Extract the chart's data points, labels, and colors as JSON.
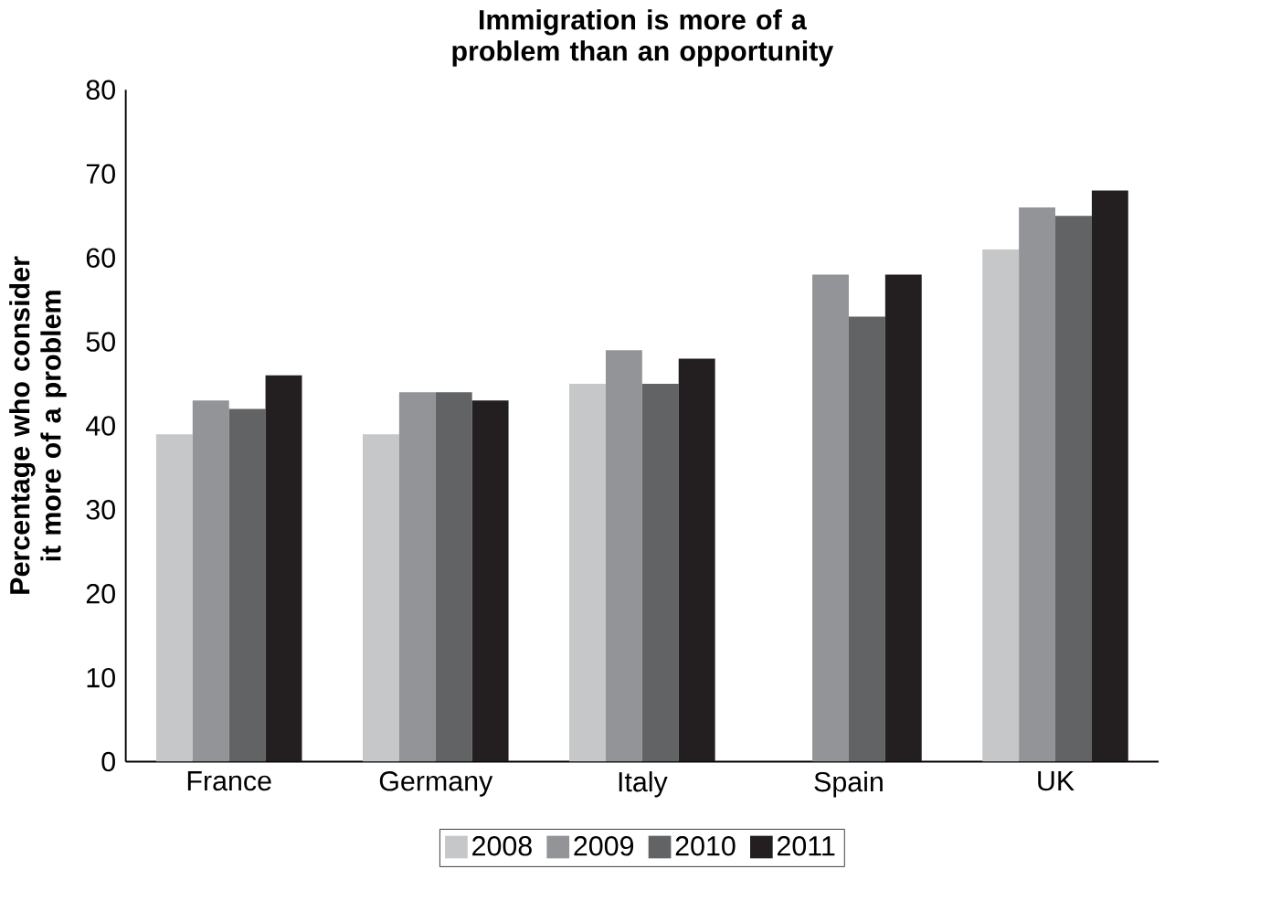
{
  "chart_data": {
    "type": "bar",
    "title": "Immigration is more of a problem than an opportunity",
    "ylabel": "Percentage who consider it more of a problem",
    "categories": [
      "France",
      "Germany",
      "Italy",
      "Spain",
      "UK"
    ],
    "series": [
      {
        "name": "2008",
        "color": "#c6c7c9",
        "values": [
          39,
          39,
          45,
          null,
          61
        ]
      },
      {
        "name": "2009",
        "color": "#939497",
        "values": [
          43,
          44,
          49,
          58,
          66
        ]
      },
      {
        "name": "2010",
        "color": "#626365",
        "values": [
          42,
          44,
          45,
          53,
          65
        ]
      },
      {
        "name": "2011",
        "color": "#231f20",
        "values": [
          46,
          43,
          48,
          58,
          68
        ]
      }
    ],
    "ylim": [
      0,
      80
    ],
    "yticks": [
      0,
      10,
      20,
      30,
      40,
      50,
      60,
      70,
      80
    ],
    "grid": false,
    "legend": "bottom"
  }
}
